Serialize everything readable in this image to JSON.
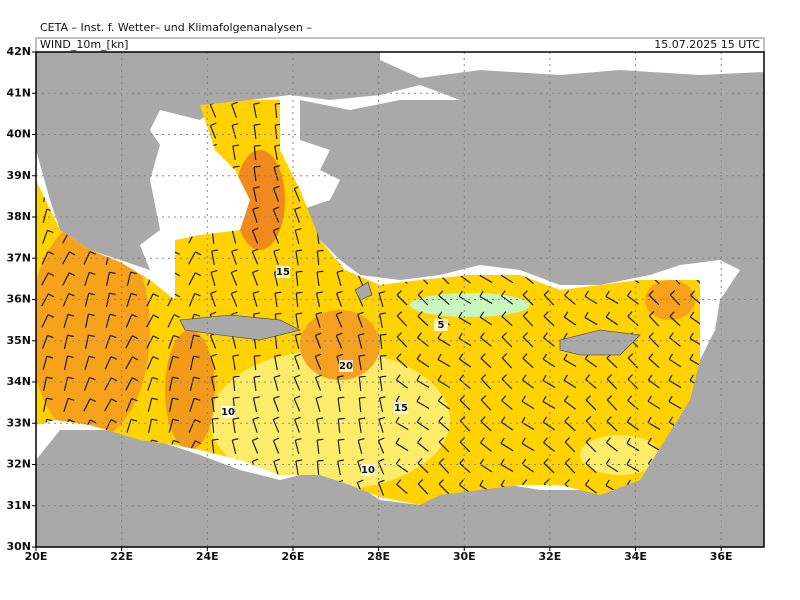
{
  "header": {
    "title": "CETA – Inst. f. Wetter– und Klimafolgenanalysen –",
    "field": "WIND_10m_[kn]",
    "valid_time": "15.07.2025 15 UTC"
  },
  "map": {
    "lonlim": [
      20,
      37
    ],
    "latlim": [
      30,
      42
    ],
    "lat_ticks": [
      {
        "value": 42,
        "label": "42N"
      },
      {
        "value": 41,
        "label": "41N"
      },
      {
        "value": 40,
        "label": "40N"
      },
      {
        "value": 39,
        "label": "39N"
      },
      {
        "value": 38,
        "label": "38N"
      },
      {
        "value": 37,
        "label": "37N"
      },
      {
        "value": 36,
        "label": "36N"
      },
      {
        "value": 35,
        "label": "35N"
      },
      {
        "value": 34,
        "label": "34N"
      },
      {
        "value": 33,
        "label": "33N"
      },
      {
        "value": 32,
        "label": "32N"
      },
      {
        "value": 31,
        "label": "31N"
      },
      {
        "value": 30,
        "label": "30N"
      }
    ],
    "lon_ticks": [
      {
        "value": 20,
        "label": "20E"
      },
      {
        "value": 22,
        "label": "22E"
      },
      {
        "value": 24,
        "label": "24E"
      },
      {
        "value": 26,
        "label": "26E"
      },
      {
        "value": 28,
        "label": "28E"
      },
      {
        "value": 30,
        "label": "30E"
      },
      {
        "value": 32,
        "label": "32E"
      },
      {
        "value": 34,
        "label": "34E"
      },
      {
        "value": 36,
        "label": "36E"
      }
    ],
    "contour_labels": [
      5,
      10,
      10,
      15,
      15,
      20
    ]
  }
}
